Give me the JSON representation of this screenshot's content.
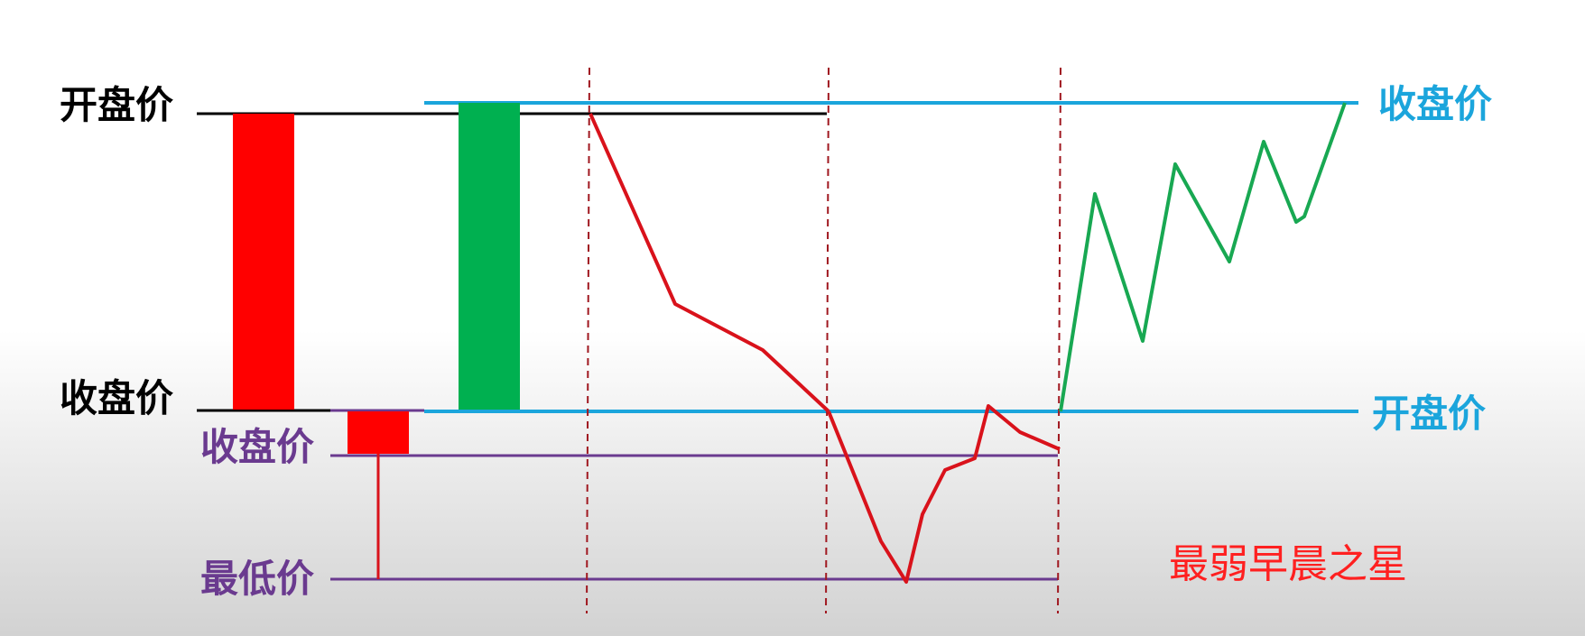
{
  "labels": {
    "left_open": "开盘价",
    "left_close": "收盘价",
    "small_close": "收盘价",
    "small_low": "最低价",
    "right_close": "收盘价",
    "right_open": "开盘价"
  },
  "caption": "最弱早晨之星",
  "colors": {
    "red_candle": "#ff0000",
    "green_candle": "#00b050",
    "blue_line": "#1ba5dc",
    "purple": "#6a3a8f",
    "red_line": "#d9121b",
    "green_line": "#18a852",
    "black": "#000000",
    "divider": "#a01820",
    "caption": "#ff2020"
  }
}
